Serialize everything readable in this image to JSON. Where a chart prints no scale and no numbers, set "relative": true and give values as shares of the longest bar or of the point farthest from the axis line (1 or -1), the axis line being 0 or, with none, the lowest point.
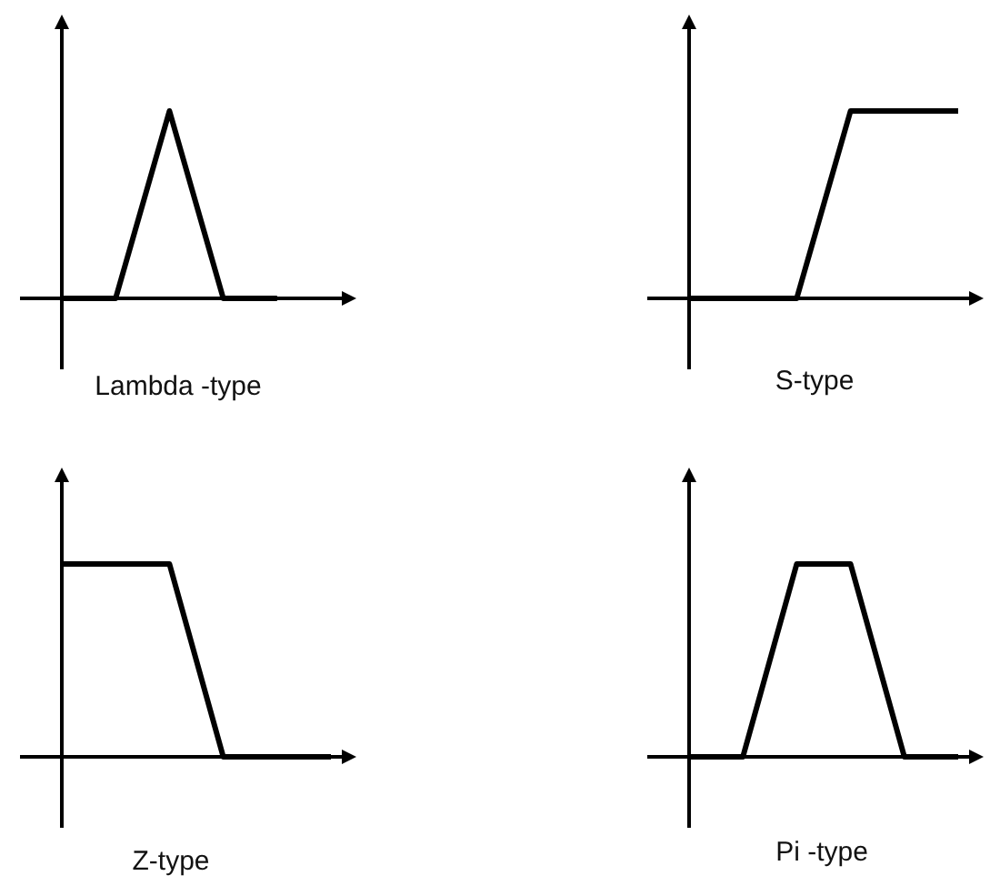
{
  "chart_data": [
    {
      "type": "line",
      "title": "Lambda -type",
      "categories": [
        null,
        null,
        null,
        null,
        null
      ],
      "values": [
        0,
        0,
        1,
        0,
        0
      ],
      "color": "#000000",
      "relative": true,
      "marker": "none"
    },
    {
      "type": "line",
      "title": "S-type",
      "categories": [
        null,
        null,
        null,
        null,
        null,
        null
      ],
      "values": [
        0,
        0,
        0,
        1,
        1,
        1
      ],
      "color": "#000000",
      "relative": true,
      "marker": "none"
    },
    {
      "type": "line",
      "title": "Z-type",
      "categories": [
        null,
        null,
        null,
        null,
        null,
        null
      ],
      "values": [
        1,
        1,
        1,
        0,
        0,
        0
      ],
      "color": "#000000",
      "relative": true,
      "marker": "none"
    },
    {
      "type": "line",
      "title": "Pi -type",
      "categories": [
        null,
        null,
        null,
        null,
        null,
        null
      ],
      "values": [
        0,
        0,
        1,
        1,
        0,
        0
      ],
      "color": "#000000",
      "relative": true,
      "marker": "none"
    }
  ]
}
